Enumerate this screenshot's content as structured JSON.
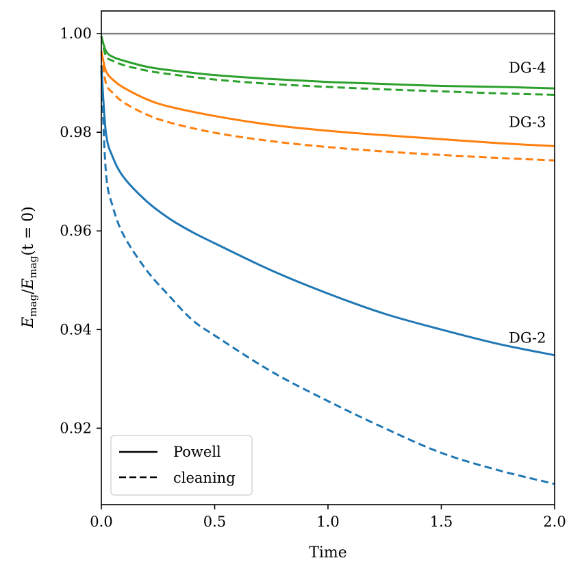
{
  "chart_data": {
    "type": "line",
    "title": "",
    "xlabel": "Time",
    "ylabel": "E_mag/E_mag(t = 0)",
    "ylabel_parts": {
      "num": "E",
      "num_sub": "mag",
      "slash": "/",
      "den": "E",
      "den_sub": "mag",
      "arg": "(t = 0)"
    },
    "xlim": [
      0.0,
      2.0
    ],
    "ylim": [
      0.9045,
      1.0046
    ],
    "xticks": [
      0.0,
      0.5,
      1.0,
      1.5,
      2.0
    ],
    "xtick_labels": [
      "0.0",
      "0.5",
      "1.0",
      "1.5",
      "2.0"
    ],
    "yticks": [
      0.92,
      0.94,
      0.96,
      0.98,
      1.0
    ],
    "ytick_labels": [
      "0.92",
      "0.94",
      "0.96",
      "0.98",
      "1.00"
    ],
    "grid": false,
    "reference_line": {
      "y": 1.0,
      "color": "#808080"
    },
    "legend": {
      "location": "lower-left",
      "entries": [
        {
          "label": "Powell",
          "style": "solid"
        },
        {
          "label": "cleaning",
          "style": "dashed"
        }
      ]
    },
    "series_labels": [
      {
        "text": "DG-4",
        "x": 1.88,
        "y": 0.9921
      },
      {
        "text": "DG-3",
        "x": 1.88,
        "y": 0.9811
      },
      {
        "text": "DG-2",
        "x": 1.88,
        "y": 0.9373
      }
    ],
    "series": [
      {
        "name": "DG-4 Powell",
        "color": "#2ca02c",
        "style": "solid",
        "x": [
          0,
          0.02,
          0.05,
          0.1,
          0.2,
          0.3,
          0.5,
          0.75,
          1.0,
          1.25,
          1.5,
          1.75,
          2.0
        ],
        "y": [
          0.9995,
          0.9965,
          0.9953,
          0.9945,
          0.9933,
          0.9926,
          0.9916,
          0.9908,
          0.9902,
          0.9898,
          0.9894,
          0.9892,
          0.9889
        ]
      },
      {
        "name": "DG-4 cleaning",
        "color": "#2ca02c",
        "style": "dashed",
        "x": [
          0,
          0.02,
          0.05,
          0.1,
          0.2,
          0.3,
          0.5,
          0.75,
          1.0,
          1.25,
          1.5,
          1.75,
          2.0
        ],
        "y": [
          0.9995,
          0.9955,
          0.9945,
          0.9936,
          0.9925,
          0.9918,
          0.9907,
          0.9898,
          0.9892,
          0.9887,
          0.9883,
          0.9879,
          0.9876
        ]
      },
      {
        "name": "DG-3 Powell",
        "color": "#ff7f0e",
        "style": "solid",
        "x": [
          0,
          0.02,
          0.05,
          0.1,
          0.2,
          0.3,
          0.5,
          0.75,
          1.0,
          1.25,
          1.5,
          1.75,
          2.0
        ],
        "y": [
          0.9965,
          0.9925,
          0.9907,
          0.989,
          0.9867,
          0.9852,
          0.9833,
          0.9815,
          0.9803,
          0.9794,
          0.9786,
          0.9778,
          0.9772
        ]
      },
      {
        "name": "DG-3 cleaning",
        "color": "#ff7f0e",
        "style": "dashed",
        "x": [
          0,
          0.02,
          0.05,
          0.1,
          0.2,
          0.3,
          0.5,
          0.75,
          1.0,
          1.25,
          1.5,
          1.75,
          2.0
        ],
        "y": [
          0.996,
          0.99,
          0.988,
          0.986,
          0.9836,
          0.982,
          0.9799,
          0.9782,
          0.977,
          0.9761,
          0.9754,
          0.9748,
          0.9743
        ]
      },
      {
        "name": "DG-2 Powell",
        "color": "#1f77b4",
        "style": "solid",
        "x": [
          0,
          0.02,
          0.05,
          0.1,
          0.2,
          0.3,
          0.4,
          0.5,
          0.75,
          1.0,
          1.25,
          1.5,
          1.75,
          2.0
        ],
        "y": [
          0.9935,
          0.98,
          0.975,
          0.9708,
          0.966,
          0.9625,
          0.9598,
          0.9575,
          0.952,
          0.9473,
          0.9432,
          0.94,
          0.9371,
          0.9348
        ]
      },
      {
        "name": "DG-2 cleaning",
        "color": "#1f77b4",
        "style": "dashed",
        "x": [
          0,
          0.02,
          0.05,
          0.1,
          0.2,
          0.3,
          0.4,
          0.5,
          0.75,
          1.0,
          1.25,
          1.5,
          1.75,
          2.0
        ],
        "y": [
          0.9925,
          0.972,
          0.965,
          0.959,
          0.952,
          0.9468,
          0.942,
          0.9388,
          0.9315,
          0.9255,
          0.92,
          0.915,
          0.9115,
          0.9087
        ]
      }
    ]
  }
}
